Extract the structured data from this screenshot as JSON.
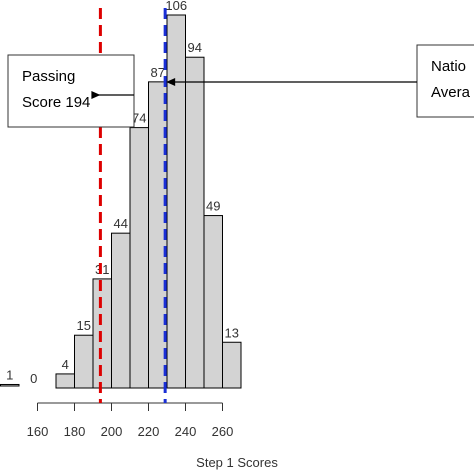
{
  "chart_data": {
    "type": "bar",
    "title": "",
    "xlabel": "Step 1 Scores",
    "ylabel": "",
    "bins": [
      {
        "start": 140,
        "end": 150,
        "count": 1
      },
      {
        "start": 160,
        "end": 170,
        "count": 0
      },
      {
        "start": 170,
        "end": 180,
        "count": 4
      },
      {
        "start": 180,
        "end": 190,
        "count": 15
      },
      {
        "start": 190,
        "end": 200,
        "count": 31
      },
      {
        "start": 200,
        "end": 210,
        "count": 44
      },
      {
        "start": 210,
        "end": 220,
        "count": 74
      },
      {
        "start": 220,
        "end": 230,
        "count": 87
      },
      {
        "start": 230,
        "end": 240,
        "count": 106
      },
      {
        "start": 240,
        "end": 250,
        "count": 94
      },
      {
        "start": 250,
        "end": 260,
        "count": 49
      },
      {
        "start": 260,
        "end": 270,
        "count": 13
      }
    ],
    "x_ticks": [
      "160",
      "180",
      "200",
      "220",
      "240",
      "260"
    ],
    "xlim": [
      140,
      270
    ],
    "ylim": [
      0,
      106
    ],
    "reference_lines": [
      {
        "value": 194,
        "color": "#dd0000",
        "style": "dashed",
        "label_lines": [
          "Passing",
          "Score 194"
        ]
      },
      {
        "value": 229,
        "color": "#1a2fd6",
        "style": "dashed",
        "label_lines": [
          "Natio",
          "Avera"
        ]
      }
    ],
    "bar_fill": "#d3d3d3",
    "grid": false
  }
}
